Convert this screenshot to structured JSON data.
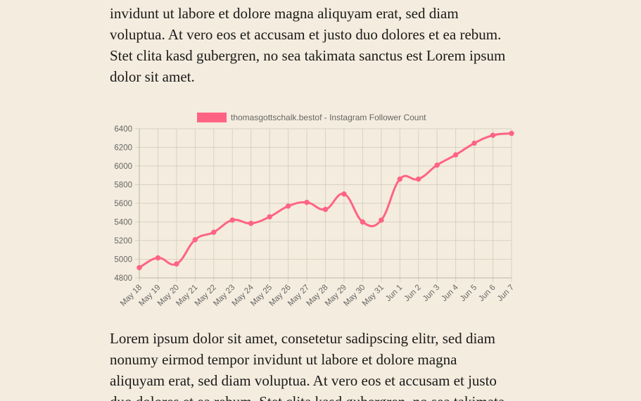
{
  "text_top": {
    "lines": [
      "invidunt ut labore et dolore magna aliquyam erat, sed diam",
      "voluptua. At vero eos et accusam et justo duo dolores et ea rebum.",
      "Stet clita kasd gubergren, no sea takimata sanctus est Lorem ipsum",
      "dolor sit amet."
    ]
  },
  "text_bottom": {
    "lines": [
      "Lorem ipsum dolor sit amet, consetetur sadipscing elitr, sed diam",
      "nonumy eirmod tempor invidunt ut labore et dolore magna",
      "aliquyam erat, sed diam voluptua. At vero eos et accusam et justo",
      "duo dolores et ea rebum. Stet clita kasd gubergren, no sea takimata"
    ]
  },
  "chart_data": {
    "type": "line",
    "categories": [
      "May 18",
      "May 19",
      "May 20",
      "May 21",
      "May 22",
      "May 23",
      "May 24",
      "May 25",
      "May 26",
      "May 27",
      "May 28",
      "May 29",
      "May 30",
      "May 31",
      "Jun 1",
      "Jun 2",
      "Jun 3",
      "Jun 4",
      "Jun 5",
      "Jun 6",
      "Jun 7"
    ],
    "series": [
      {
        "name": "thomasgottschalk.bestof - Instagram Follower Count",
        "color": "#ff6384",
        "values": [
          4910,
          5015,
          4950,
          5210,
          5290,
          5420,
          5385,
          5455,
          5570,
          5610,
          5535,
          5700,
          5400,
          5420,
          5860,
          5860,
          6010,
          6120,
          6245,
          6330,
          6350
        ]
      }
    ],
    "yticks": [
      4800,
      5000,
      5200,
      5400,
      5600,
      5800,
      6000,
      6200,
      6400
    ],
    "ylim": [
      4800,
      6400
    ],
    "grid": true,
    "legend": "top",
    "title": "",
    "xlabel": "",
    "ylabel": ""
  }
}
